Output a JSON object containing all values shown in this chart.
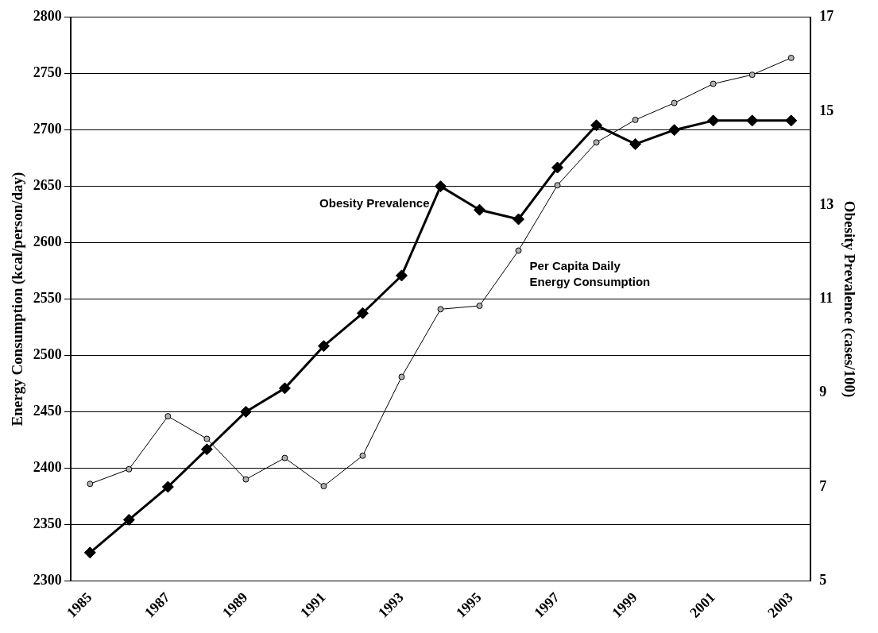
{
  "chart_data": {
    "type": "line",
    "categories": [
      "1985",
      null,
      "1987",
      null,
      "1989",
      null,
      "1991",
      null,
      "1993",
      null,
      "1995",
      null,
      "1997",
      null,
      "1999",
      null,
      "2001",
      null,
      "2003"
    ],
    "series": [
      {
        "name": "Per Capita Daily Energy Consumption",
        "color": "#000000",
        "marker": "circle",
        "values": [
          2386,
          2399,
          2446,
          2426,
          2390,
          2409,
          2384,
          2411,
          2481,
          2541,
          2544,
          2593,
          2651,
          2689,
          2709,
          2724,
          2741,
          2749,
          2764
        ]
      },
      {
        "name": "Obesity Prevalence",
        "color": "#000000",
        "marker": "diamond",
        "axis": "y2",
        "values": [
          5.6,
          6.3,
          7.0,
          7.8,
          8.6,
          9.1,
          10.0,
          10.7,
          11.5,
          13.4,
          12.9,
          12.7,
          13.8,
          14.7,
          14.3,
          14.6,
          14.8,
          14.8,
          14.8
        ]
      }
    ],
    "ylabel": "Energy Consumption (kcal/person/day)",
    "y2label": "Obesity Prevalence (cases/100)",
    "ylim": [
      2300,
      2800
    ],
    "yticks": [
      2300,
      2350,
      2400,
      2450,
      2500,
      2550,
      2600,
      2650,
      2700,
      2750,
      2800
    ],
    "y2lim": [
      5,
      17
    ],
    "y2ticks": [
      5,
      7,
      9,
      11,
      13,
      15,
      17
    ],
    "grid": "y",
    "legend": false
  }
}
